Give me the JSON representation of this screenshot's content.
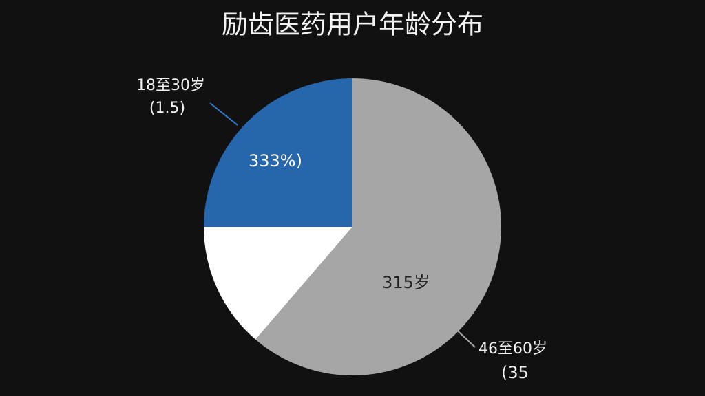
{
  "chart_data": {
    "type": "pie",
    "title": "励齿医药用户年龄分布",
    "categories": [
      "18至30岁",
      null,
      "46至60岁"
    ],
    "values": [
      25,
      13.7,
      61.3
    ],
    "colors": [
      "#2566ad",
      "#ffffff",
      "#a6a6a6"
    ],
    "annotations": [
      "(1.5)",
      "333%)",
      "315岁",
      "(35"
    ]
  }
}
